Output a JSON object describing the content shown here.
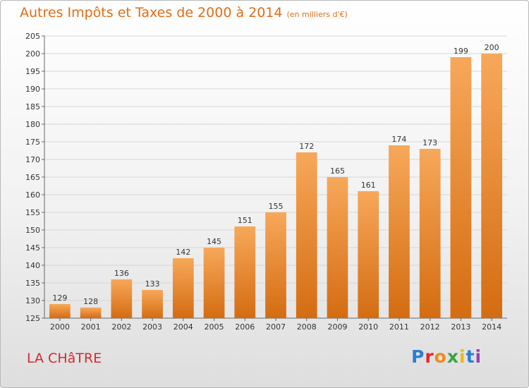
{
  "header": {
    "title": "Autres Impôts et Taxes de 2000 à 2014",
    "unit": "(en milliers d'€)"
  },
  "footer": {
    "place": "LA CHâTRE",
    "logo": {
      "text": "Proxiti",
      "colors": [
        "#2a7fd4",
        "#e3262d",
        "#f08a1c",
        "#3aa344",
        "#f3b70f",
        "#2a7fd4",
        "#9b3fb5"
      ]
    }
  },
  "colors": {
    "bar_top": "#f7a85a",
    "bar_bottom": "#d46c11",
    "title": "#e26c13",
    "place": "#d7282f"
  },
  "chart_data": {
    "type": "bar",
    "title": "Autres Impôts et Taxes de 2000 à 2014",
    "subtitle": "(en milliers d'€)",
    "categories": [
      "2000",
      "2001",
      "2002",
      "2003",
      "2004",
      "2005",
      "2006",
      "2007",
      "2008",
      "2009",
      "2010",
      "2011",
      "2012",
      "2013",
      "2014"
    ],
    "values": [
      129,
      128,
      136,
      133,
      142,
      145,
      151,
      155,
      172,
      165,
      161,
      174,
      173,
      199,
      200
    ],
    "ylim": [
      125,
      205
    ],
    "yticks": [
      125,
      130,
      135,
      140,
      145,
      150,
      155,
      160,
      165,
      170,
      175,
      180,
      185,
      190,
      195,
      200,
      205
    ],
    "grid": true,
    "legend": "none"
  }
}
